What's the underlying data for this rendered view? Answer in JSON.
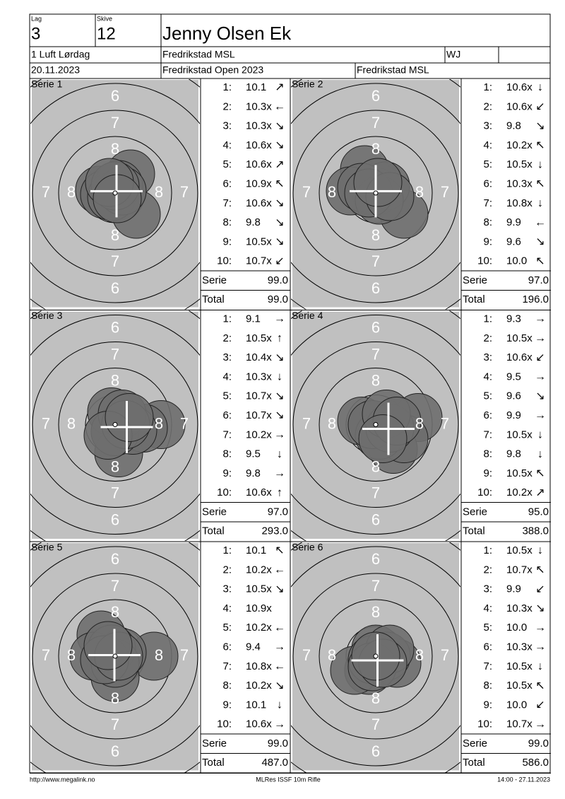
{
  "header": {
    "team_label": "Lag",
    "team": "3",
    "target_label": "Skive",
    "target": "12",
    "name": "Jenny Olsen Ek",
    "event": "1 Luft Lørdag",
    "club": "Fredrikstad MSL",
    "class": "WJ",
    "date": "20.11.2023",
    "competition": "Fredrikstad Open 2023",
    "organizer": "Fredrikstad MSL"
  },
  "ring_labels": [
    6,
    7,
    8
  ],
  "labels": {
    "serie": "Serie",
    "total": "Total"
  },
  "series": [
    {
      "title": "Serie 1",
      "shots": [
        {
          "no": "1:",
          "score": "10.1",
          "arrow": "↗"
        },
        {
          "no": "2:",
          "score": "10.3x",
          "arrow": "←"
        },
        {
          "no": "3:",
          "score": "10.3x",
          "arrow": "↘"
        },
        {
          "no": "4:",
          "score": "10.6x",
          "arrow": "↘"
        },
        {
          "no": "5:",
          "score": "10.6x",
          "arrow": "↗"
        },
        {
          "no": "6:",
          "score": "10.9x",
          "arrow": "↖"
        },
        {
          "no": "7:",
          "score": "10.6x",
          "arrow": "↘"
        },
        {
          "no": "8:",
          "score": "9.8",
          "arrow": "↘"
        },
        {
          "no": "9:",
          "score": "10.5x",
          "arrow": "↘"
        },
        {
          "no": "10:",
          "score": "10.7x",
          "arrow": "↙"
        }
      ],
      "serie": "99.0",
      "total": "99.0"
    },
    {
      "title": "Serie 2",
      "shots": [
        {
          "no": "1:",
          "score": "10.6x",
          "arrow": "↓"
        },
        {
          "no": "2:",
          "score": "10.6x",
          "arrow": "↙"
        },
        {
          "no": "3:",
          "score": "9.8",
          "arrow": "↘"
        },
        {
          "no": "4:",
          "score": "10.2x",
          "arrow": "↖"
        },
        {
          "no": "5:",
          "score": "10.5x",
          "arrow": "↓"
        },
        {
          "no": "6:",
          "score": "10.3x",
          "arrow": "↖"
        },
        {
          "no": "7:",
          "score": "10.8x",
          "arrow": "↓"
        },
        {
          "no": "8:",
          "score": "9.9",
          "arrow": "←"
        },
        {
          "no": "9:",
          "score": "9.6",
          "arrow": "↘"
        },
        {
          "no": "10:",
          "score": "10.0",
          "arrow": "↖"
        }
      ],
      "serie": "97.0",
      "total": "196.0"
    },
    {
      "title": "Serie 3",
      "shots": [
        {
          "no": "1:",
          "score": "9.1",
          "arrow": "→"
        },
        {
          "no": "2:",
          "score": "10.5x",
          "arrow": "↑"
        },
        {
          "no": "3:",
          "score": "10.4x",
          "arrow": "↘"
        },
        {
          "no": "4:",
          "score": "10.3x",
          "arrow": "↓"
        },
        {
          "no": "5:",
          "score": "10.7x",
          "arrow": "↘"
        },
        {
          "no": "6:",
          "score": "10.7x",
          "arrow": "↘"
        },
        {
          "no": "7:",
          "score": "10.2x",
          "arrow": "→"
        },
        {
          "no": "8:",
          "score": "9.5",
          "arrow": "↓"
        },
        {
          "no": "9:",
          "score": "9.8",
          "arrow": "→"
        },
        {
          "no": "10:",
          "score": "10.6x",
          "arrow": "↑"
        }
      ],
      "serie": "97.0",
      "total": "293.0"
    },
    {
      "title": "Serie 4",
      "shots": [
        {
          "no": "1:",
          "score": "9.3",
          "arrow": "→"
        },
        {
          "no": "2:",
          "score": "10.5x",
          "arrow": "→"
        },
        {
          "no": "3:",
          "score": "10.6x",
          "arrow": "↙"
        },
        {
          "no": "4:",
          "score": "9.5",
          "arrow": "→"
        },
        {
          "no": "5:",
          "score": "9.6",
          "arrow": "↘"
        },
        {
          "no": "6:",
          "score": "9.9",
          "arrow": "→"
        },
        {
          "no": "7:",
          "score": "10.5x",
          "arrow": "↓"
        },
        {
          "no": "8:",
          "score": "9.8",
          "arrow": "↓"
        },
        {
          "no": "9:",
          "score": "10.5x",
          "arrow": "↖"
        },
        {
          "no": "10:",
          "score": "10.2x",
          "arrow": "↗"
        }
      ],
      "serie": "95.0",
      "total": "388.0"
    },
    {
      "title": "Serie 5",
      "shots": [
        {
          "no": "1:",
          "score": "10.1",
          "arrow": "↖"
        },
        {
          "no": "2:",
          "score": "10.2x",
          "arrow": "←"
        },
        {
          "no": "3:",
          "score": "10.5x",
          "arrow": "↘"
        },
        {
          "no": "4:",
          "score": "10.9x",
          "arrow": null
        },
        {
          "no": "5:",
          "score": "10.2x",
          "arrow": "←"
        },
        {
          "no": "6:",
          "score": "9.4",
          "arrow": "→"
        },
        {
          "no": "7:",
          "score": "10.8x",
          "arrow": "←"
        },
        {
          "no": "8:",
          "score": "10.2x",
          "arrow": "↘"
        },
        {
          "no": "9:",
          "score": "10.1",
          "arrow": "↓"
        },
        {
          "no": "10:",
          "score": "10.6x",
          "arrow": "→"
        }
      ],
      "serie": "99.0",
      "total": "487.0"
    },
    {
      "title": "Serie 6",
      "shots": [
        {
          "no": "1:",
          "score": "10.5x",
          "arrow": "↓"
        },
        {
          "no": "2:",
          "score": "10.7x",
          "arrow": "↖"
        },
        {
          "no": "3:",
          "score": "9.9",
          "arrow": "↙"
        },
        {
          "no": "4:",
          "score": "10.3x",
          "arrow": "↘"
        },
        {
          "no": "5:",
          "score": "10.0",
          "arrow": "→"
        },
        {
          "no": "6:",
          "score": "10.3x",
          "arrow": "→"
        },
        {
          "no": "7:",
          "score": "10.5x",
          "arrow": "↓"
        },
        {
          "no": "8:",
          "score": "10.5x",
          "arrow": "↖"
        },
        {
          "no": "9:",
          "score": "10.0",
          "arrow": "↙"
        },
        {
          "no": "10:",
          "score": "10.7x",
          "arrow": "→"
        }
      ],
      "serie": "99.0",
      "total": "586.0"
    }
  ],
  "footer": {
    "url": "http://www.megalink.no",
    "software": "MLRes ISSF 10m Rifle",
    "timestamp": "14:00 - 27.11.2023"
  }
}
